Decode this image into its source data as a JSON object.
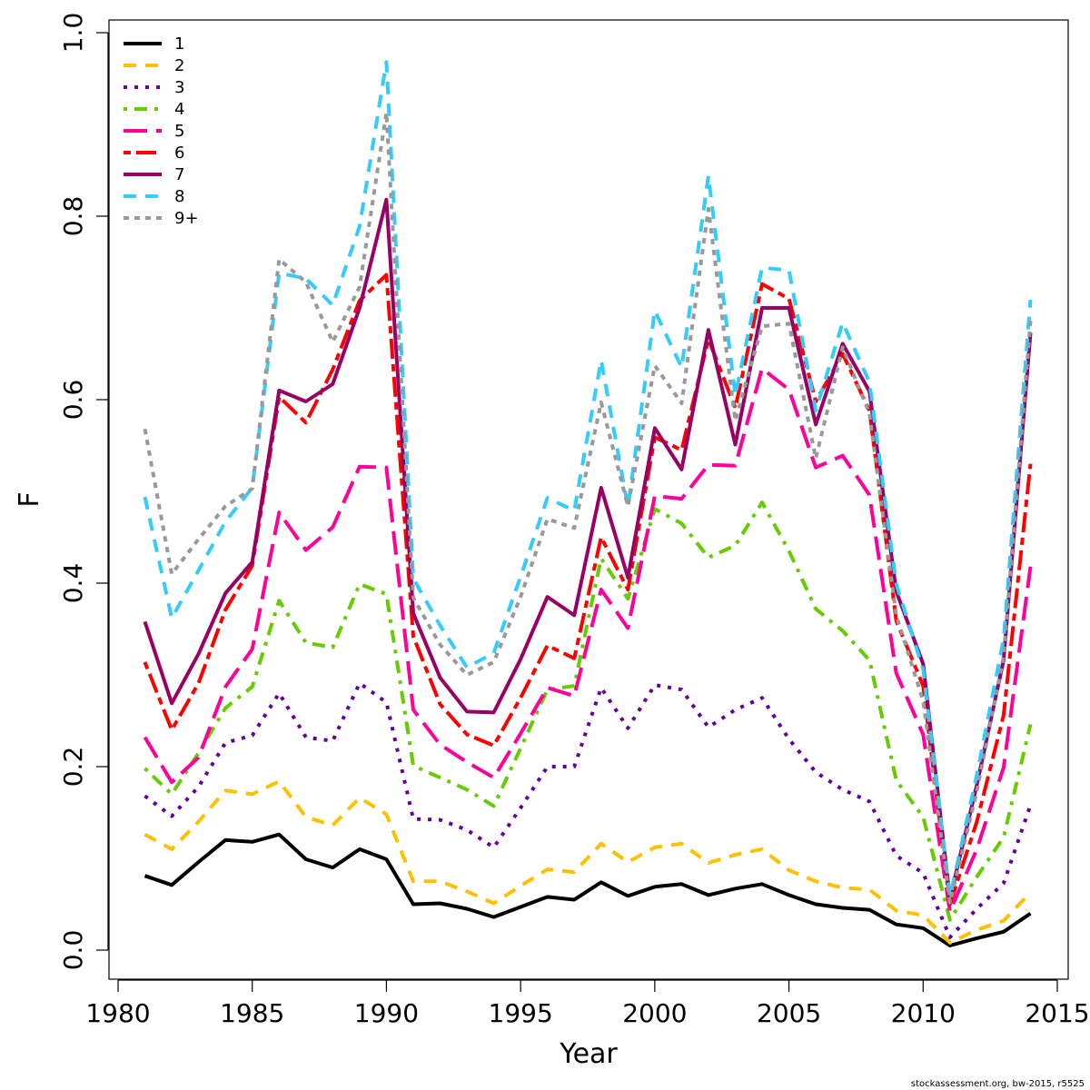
{
  "chart_data": {
    "type": "line",
    "xlabel": "Year",
    "ylabel": "F",
    "xlim": [
      1980,
      2015
    ],
    "ylim": [
      0.0,
      1.0
    ],
    "x_ticks": [
      "1980",
      "1985",
      "1990",
      "1995",
      "2000",
      "2005",
      "2010",
      "2015"
    ],
    "y_ticks": [
      "0.0",
      "0.2",
      "0.4",
      "0.6",
      "0.8",
      "1.0"
    ],
    "grid": false,
    "legend_position": "top-left",
    "x": [
      1981,
      1982,
      1983,
      1984,
      1985,
      1986,
      1987,
      1988,
      1989,
      1990,
      1991,
      1992,
      1993,
      1994,
      1995,
      1996,
      1997,
      1998,
      1999,
      2000,
      2001,
      2002,
      2003,
      2004,
      2005,
      2006,
      2007,
      2008,
      2009,
      2010,
      2011,
      2012,
      2013,
      2014
    ],
    "series": [
      {
        "name": "1",
        "color": "#000000",
        "dash": "solid",
        "values": [
          0.081,
          0.071,
          0.096,
          0.12,
          0.118,
          0.126,
          0.099,
          0.09,
          0.11,
          0.099,
          0.05,
          0.051,
          0.045,
          0.036,
          0.047,
          0.058,
          0.055,
          0.074,
          0.059,
          0.069,
          0.072,
          0.06,
          0.067,
          0.072,
          0.06,
          0.05,
          0.046,
          0.044,
          0.028,
          0.024,
          0.005,
          0.013,
          0.02,
          0.04
        ]
      },
      {
        "name": "2",
        "color": "#FFC000",
        "dash": "dashed",
        "values": [
          0.126,
          0.11,
          0.14,
          0.174,
          0.17,
          0.184,
          0.145,
          0.136,
          0.166,
          0.148,
          0.075,
          0.075,
          0.064,
          0.051,
          0.07,
          0.088,
          0.085,
          0.116,
          0.096,
          0.112,
          0.116,
          0.095,
          0.104,
          0.11,
          0.087,
          0.075,
          0.068,
          0.066,
          0.043,
          0.038,
          0.008,
          0.022,
          0.032,
          0.063
        ]
      },
      {
        "name": "3",
        "color": "#66009A",
        "dash": "dotted",
        "values": [
          0.168,
          0.146,
          0.178,
          0.226,
          0.234,
          0.28,
          0.232,
          0.228,
          0.291,
          0.27,
          0.143,
          0.142,
          0.131,
          0.112,
          0.155,
          0.2,
          0.2,
          0.286,
          0.242,
          0.289,
          0.284,
          0.243,
          0.262,
          0.275,
          0.23,
          0.194,
          0.175,
          0.162,
          0.103,
          0.084,
          0.014,
          0.045,
          0.073,
          0.158
        ]
      },
      {
        "name": "4",
        "color": "#66CC00",
        "dash": "dotdash",
        "values": [
          0.198,
          0.17,
          0.215,
          0.264,
          0.287,
          0.381,
          0.335,
          0.33,
          0.399,
          0.388,
          0.201,
          0.188,
          0.175,
          0.157,
          0.22,
          0.284,
          0.288,
          0.427,
          0.383,
          0.481,
          0.465,
          0.428,
          0.441,
          0.488,
          0.435,
          0.372,
          0.348,
          0.316,
          0.185,
          0.145,
          0.033,
          0.08,
          0.123,
          0.246
        ]
      },
      {
        "name": "5",
        "color": "#FF0099",
        "dash": "longdash",
        "values": [
          0.232,
          0.183,
          0.21,
          0.287,
          0.328,
          0.477,
          0.436,
          0.461,
          0.527,
          0.526,
          0.262,
          0.224,
          0.205,
          0.188,
          0.236,
          0.286,
          0.277,
          0.393,
          0.351,
          0.495,
          0.492,
          0.529,
          0.528,
          0.634,
          0.611,
          0.526,
          0.539,
          0.496,
          0.302,
          0.235,
          0.042,
          0.11,
          0.199,
          0.418
        ]
      },
      {
        "name": "6",
        "color": "#FF0000",
        "dash": "twodash",
        "values": [
          0.314,
          0.24,
          0.291,
          0.371,
          0.419,
          0.603,
          0.575,
          0.633,
          0.708,
          0.736,
          0.342,
          0.268,
          0.235,
          0.223,
          0.275,
          0.332,
          0.318,
          0.45,
          0.393,
          0.559,
          0.545,
          0.666,
          0.591,
          0.726,
          0.71,
          0.598,
          0.65,
          0.588,
          0.359,
          0.288,
          0.05,
          0.14,
          0.256,
          0.53
        ]
      },
      {
        "name": "7",
        "color": "#990066",
        "dash": "solid",
        "values": [
          0.358,
          0.269,
          0.323,
          0.389,
          0.423,
          0.61,
          0.598,
          0.617,
          0.7,
          0.818,
          0.367,
          0.297,
          0.26,
          0.259,
          0.317,
          0.385,
          0.365,
          0.504,
          0.406,
          0.569,
          0.524,
          0.676,
          0.551,
          0.7,
          0.7,
          0.573,
          0.661,
          0.609,
          0.391,
          0.312,
          0.056,
          0.18,
          0.316,
          0.673
        ]
      },
      {
        "name": "8",
        "color": "#33CCFF",
        "dash": "dashed",
        "values": [
          0.494,
          0.362,
          0.414,
          0.467,
          0.504,
          0.738,
          0.732,
          0.703,
          0.789,
          0.968,
          0.405,
          0.354,
          0.308,
          0.324,
          0.407,
          0.493,
          0.479,
          0.643,
          0.483,
          0.697,
          0.635,
          0.844,
          0.605,
          0.744,
          0.741,
          0.588,
          0.684,
          0.619,
          0.399,
          0.306,
          0.058,
          0.191,
          0.339,
          0.709
        ]
      },
      {
        "name": "9+",
        "color": "#999999",
        "dash": "shortdot",
        "values": [
          0.568,
          0.41,
          0.448,
          0.484,
          0.503,
          0.753,
          0.728,
          0.663,
          0.723,
          0.913,
          0.384,
          0.333,
          0.3,
          0.314,
          0.385,
          0.47,
          0.46,
          0.597,
          0.484,
          0.637,
          0.596,
          0.808,
          0.577,
          0.68,
          0.683,
          0.536,
          0.657,
          0.585,
          0.365,
          0.272,
          0.052,
          0.173,
          0.32,
          0.686
        ]
      }
    ],
    "footnote": "stockassessment.org, bw-2015, r5525"
  }
}
